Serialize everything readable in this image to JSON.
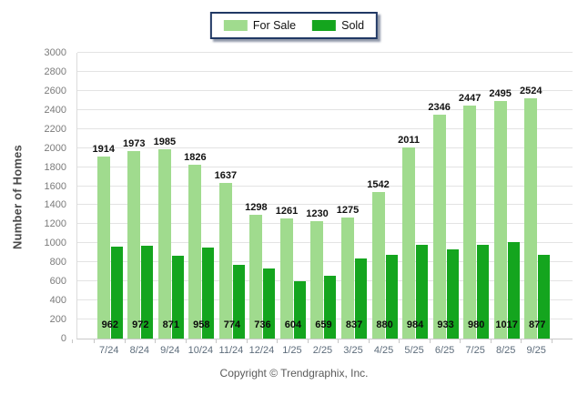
{
  "legend": {
    "items": [
      {
        "label": "For Sale",
        "color": "#a0db8e"
      },
      {
        "label": "Sold",
        "color": "#14a51e"
      }
    ]
  },
  "footer": {
    "copyright": "Copyright © Trendgraphix, Inc."
  },
  "colors": {
    "for_sale_bar": "#a0db8e",
    "sold_bar": "#14a51e",
    "gridline": "#e3e3e3",
    "baseline": "#c9c9c9",
    "y_tick_text": "#7b7b7b",
    "x_tick_text": "#5d6c7b",
    "value_label_text": "#111111",
    "legend_border": "#203864"
  },
  "chart_data": {
    "type": "bar",
    "title": "",
    "ylabel": "Number of Homes",
    "xlabel": "",
    "ylim": [
      0,
      3000
    ],
    "ytick_step": 200,
    "grid": true,
    "legend_position": "top-center",
    "categories": [
      "7/24",
      "8/24",
      "9/24",
      "10/24",
      "11/24",
      "12/24",
      "1/25",
      "2/25",
      "3/25",
      "4/25",
      "5/25",
      "6/25",
      "7/25",
      "8/25",
      "9/25"
    ],
    "series": [
      {
        "name": "For Sale",
        "color": "#a0db8e",
        "values": [
          1914,
          1973,
          1985,
          1826,
          1637,
          1298,
          1261,
          1230,
          1275,
          1542,
          2011,
          2346,
          2447,
          2495,
          2524
        ]
      },
      {
        "name": "Sold",
        "color": "#14a51e",
        "values": [
          962,
          972,
          871,
          958,
          774,
          736,
          604,
          659,
          837,
          880,
          984,
          933,
          980,
          1017,
          877
        ]
      }
    ]
  }
}
